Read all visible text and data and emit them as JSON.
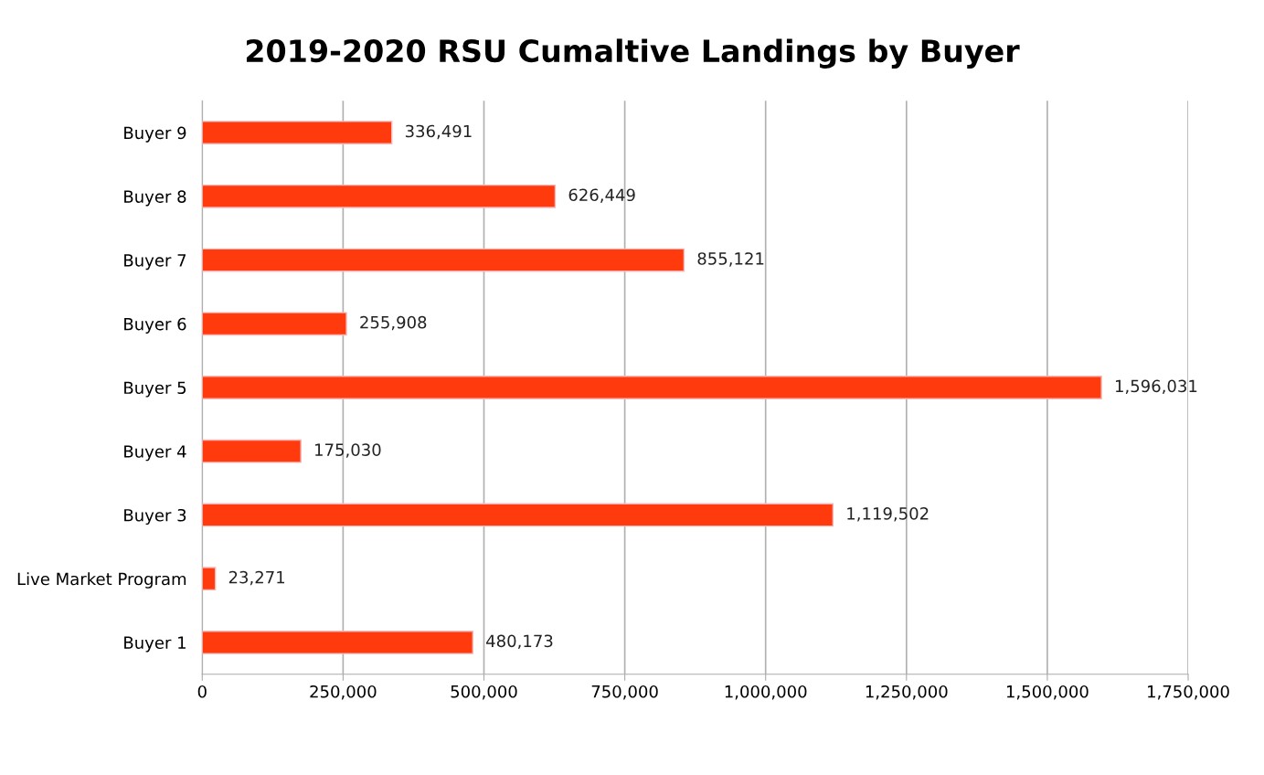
{
  "chart_data": {
    "type": "bar",
    "orientation": "horizontal",
    "title": "2019-2020 RSU Cumaltive Landings by Buyer",
    "categories": [
      "Buyer 9",
      "Buyer 8",
      "Buyer 7",
      "Buyer 6",
      "Buyer 5",
      "Buyer 4",
      "Buyer 3",
      "Live Market Program",
      "Buyer 1"
    ],
    "values": [
      336491,
      626449,
      855121,
      255908,
      1596031,
      175030,
      1119502,
      23271,
      480173
    ],
    "value_labels": [
      "336,491",
      "626,449",
      "855,121",
      "255,908",
      "1,596,031",
      "175,030",
      "1,119,502",
      "23,271",
      "480,173"
    ],
    "color": "#ff3a0c",
    "xlim": [
      0,
      1750000
    ],
    "xticks": [
      0,
      {
        "value": 250000,
        "label": "250,000"
      },
      {
        "value": 500000,
        "label": "500,000"
      },
      {
        "value": 750000,
        "label": "750,000"
      },
      {
        "value": 1000000,
        "label": "1,000,000"
      },
      {
        "value": 1250000,
        "label": "1,250,000"
      },
      {
        "value": 1500000,
        "label": "1,500,000"
      },
      {
        "value": 1750000,
        "label": "1,750,000"
      }
    ],
    "grid": "x"
  }
}
